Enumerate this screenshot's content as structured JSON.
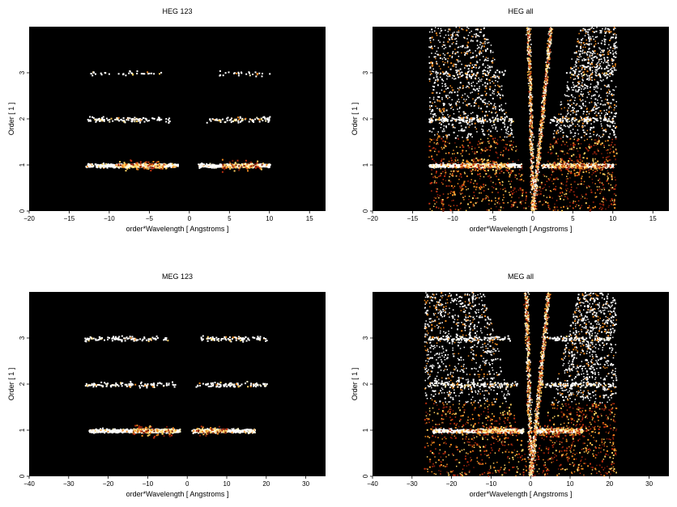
{
  "chart_data": [
    {
      "type": "heatmap",
      "title": "HEG 123",
      "xlabel": "order*Wavelength [ Angstroms ]",
      "ylabel": "Order [ 1 ]",
      "xlim": [
        -20,
        17
      ],
      "ylim": [
        0,
        4
      ],
      "xticks": [
        -20,
        -15,
        -10,
        -5,
        0,
        5,
        10,
        15
      ],
      "yticks": [
        0,
        1,
        2,
        3
      ],
      "background": "#000000",
      "bands": [
        {
          "order": 1,
          "ranges": [
            [
              -13,
              -1.5
            ],
            [
              1,
              10
            ]
          ],
          "peak_ranges": [
            [
              -9,
              -3
            ],
            [
              4,
              9
            ]
          ],
          "density": "high"
        },
        {
          "order": 2,
          "ranges": [
            [
              -13,
              -2.5
            ],
            [
              2,
              10
            ]
          ],
          "density": "low"
        },
        {
          "order": 3,
          "ranges": [
            [
              -12.5,
              -3.5
            ],
            [
              3.5,
              10
            ]
          ],
          "density": "very_low"
        }
      ],
      "wedges": false
    },
    {
      "type": "heatmap",
      "title": "HEG all",
      "xlabel": "order*Wavelength [ Angstroms ]",
      "ylabel": "Order [ 1 ]",
      "xlim": [
        -20,
        17
      ],
      "ylim": [
        0,
        4
      ],
      "xticks": [
        -20,
        -15,
        -10,
        -5,
        0,
        5,
        10,
        15
      ],
      "yticks": [
        0,
        1,
        2,
        3
      ],
      "background": "#000000",
      "bands": [
        {
          "order": 1,
          "ranges": [
            [
              -13,
              -1.5
            ],
            [
              1,
              10
            ]
          ],
          "peak_ranges": [
            [
              -9,
              -3
            ],
            [
              2,
              9
            ]
          ],
          "density": "high"
        },
        {
          "order": 2,
          "ranges": [
            [
              -13,
              -2.5
            ],
            [
              2,
              10
            ]
          ],
          "density": "low"
        },
        {
          "order": 3,
          "ranges": [
            [
              -12.5,
              -3.5
            ],
            [
              3.5,
              10
            ]
          ],
          "density": "very_low"
        }
      ],
      "wedges": true
    },
    {
      "type": "heatmap",
      "title": "MEG 123",
      "xlabel": "order*Wavelength [ Angstroms ]",
      "ylabel": "Order [ 1 ]",
      "xlim": [
        -40,
        35
      ],
      "ylim": [
        0,
        4
      ],
      "xticks": [
        -40,
        -30,
        -20,
        -10,
        0,
        10,
        20,
        30
      ],
      "yticks": [
        0,
        1,
        2,
        3
      ],
      "background": "#000000",
      "bands": [
        {
          "order": 1,
          "ranges": [
            [
              -25,
              -2
            ],
            [
              1,
              17
            ]
          ],
          "peak_ranges": [
            [
              -14,
              -3
            ],
            [
              2,
              10
            ]
          ],
          "density": "high"
        },
        {
          "order": 2,
          "ranges": [
            [
              -26,
              -3
            ],
            [
              2,
              20
            ]
          ],
          "density": "low"
        },
        {
          "order": 3,
          "ranges": [
            [
              -26,
              -5
            ],
            [
              3,
              20
            ]
          ],
          "density": "low"
        }
      ],
      "wedges": false
    },
    {
      "type": "heatmap",
      "title": "MEG all",
      "xlabel": "order*Wavelength [ Angstroms ]",
      "ylabel": "Order [ 1 ]",
      "xlim": [
        -40,
        35
      ],
      "ylim": [
        0,
        4
      ],
      "xticks": [
        -40,
        -30,
        -20,
        -10,
        0,
        10,
        20,
        30
      ],
      "yticks": [
        0,
        1,
        2,
        3
      ],
      "background": "#000000",
      "bands": [
        {
          "order": 1,
          "ranges": [
            [
              -25,
              -2
            ],
            [
              1,
              13
            ]
          ],
          "peak_ranges": [
            [
              -14,
              -3
            ],
            [
              2,
              13
            ]
          ],
          "density": "high"
        },
        {
          "order": 2,
          "ranges": [
            [
              -26,
              -3
            ],
            [
              2,
              20
            ]
          ],
          "density": "low"
        },
        {
          "order": 3,
          "ranges": [
            [
              -26,
              -5
            ],
            [
              3,
              20
            ]
          ],
          "density": "low"
        }
      ],
      "wedges": true
    }
  ]
}
